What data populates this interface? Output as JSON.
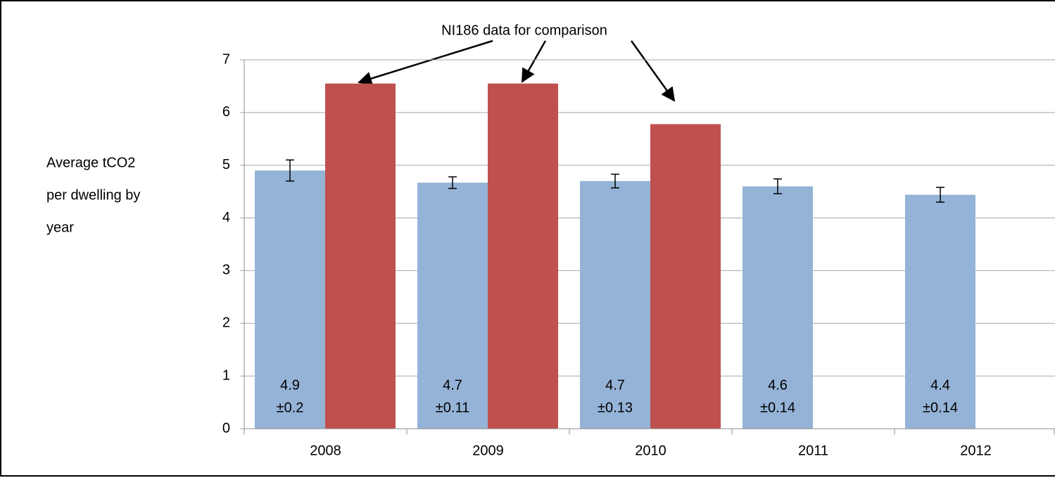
{
  "chart_data": {
    "type": "bar",
    "annotation": "NI186 data for comparison",
    "ylabel": [
      "Average tCO2",
      "per dwelling by",
      "year"
    ],
    "categories": [
      "2008",
      "2009",
      "2010",
      "2011",
      "2012"
    ],
    "series": [
      {
        "color": "#95b3d7",
        "values": [
          4.9,
          4.67,
          4.7,
          4.6,
          4.44
        ],
        "errors": [
          0.2,
          0.11,
          0.13,
          0.14,
          0.14
        ],
        "value_labels": [
          "4.9",
          "4.7",
          "4.7",
          "4.6",
          "4.4"
        ],
        "error_labels": [
          "±0.2",
          "±0.11",
          "±0.13",
          "±0.14",
          "±0.14"
        ]
      },
      {
        "color": "#c0504d",
        "values": [
          6.55,
          6.55,
          5.78,
          null,
          null
        ]
      }
    ],
    "ylim": [
      0,
      7
    ],
    "yticks": [
      0,
      1,
      2,
      3,
      4,
      5,
      6,
      7
    ],
    "grid": true
  }
}
